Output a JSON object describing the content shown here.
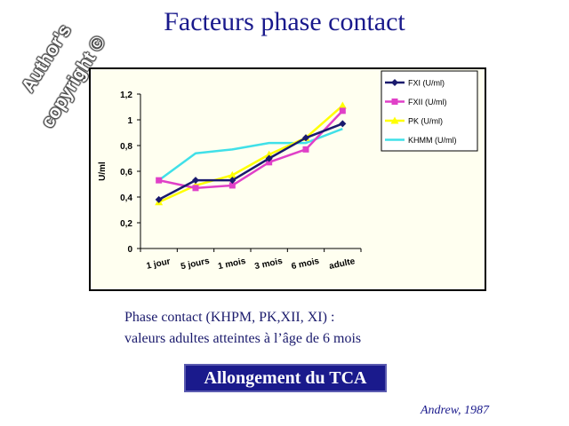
{
  "title": "Facteurs phase contact",
  "watermark": {
    "line1": "Author's",
    "line2": "copyright ©"
  },
  "caption": {
    "line1": "Phase contact (KHPM, PK,XII, XI) :",
    "line2": "valeurs adultes atteintes à l’âge de 6 mois"
  },
  "highlight_button": "Allongement du TCA",
  "reference": "Andrew, 1987",
  "chart_data": {
    "type": "line",
    "categories": [
      "1 jour",
      "5 jours",
      "1 mois",
      "3 mois",
      "6 mois",
      "adulte"
    ],
    "ylabel": "U/ml",
    "xlabel": "",
    "ylim": [
      0,
      1.2
    ],
    "yticks": [
      "0",
      "0,2",
      "0,4",
      "0,6",
      "0,8",
      "1",
      "1,2"
    ],
    "grid": false,
    "legend_position": "top-right",
    "series": [
      {
        "name": "FXI (U/ml)",
        "color": "#1a1a6e",
        "marker": "diamond",
        "values": [
          0.38,
          0.53,
          0.53,
          0.7,
          0.86,
          0.97
        ]
      },
      {
        "name": "FXII (U/ml)",
        "color": "#e040c8",
        "marker": "square",
        "values": [
          0.53,
          0.47,
          0.49,
          0.67,
          0.77,
          1.07
        ]
      },
      {
        "name": "PK (U/ml)",
        "color": "#ffff00",
        "marker": "triangle",
        "values": [
          0.36,
          0.49,
          0.57,
          0.73,
          0.86,
          1.11
        ]
      },
      {
        "name": "KHMM (U/ml)",
        "color": "#40e0e8",
        "marker": "none",
        "values": [
          0.53,
          0.74,
          0.77,
          0.82,
          0.82,
          0.93
        ]
      }
    ]
  }
}
